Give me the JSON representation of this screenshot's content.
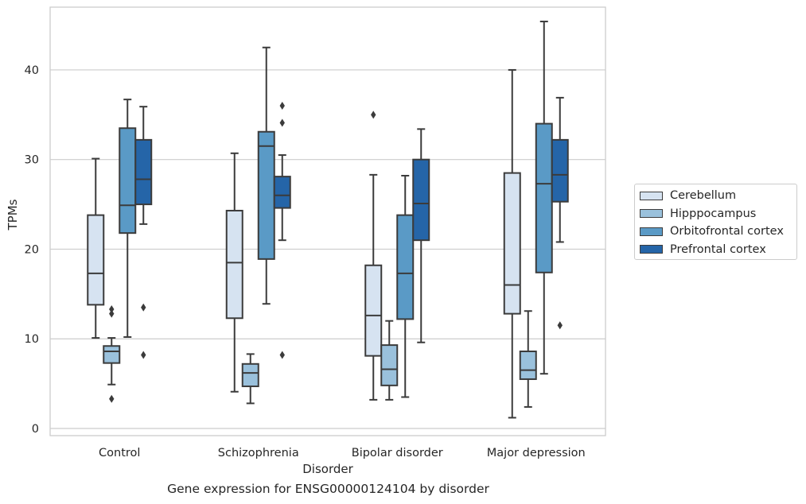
{
  "caption": "Gene expression for ENSG00000124104 by disorder",
  "chart_data": {
    "type": "box",
    "xlabel": "Disorder",
    "ylabel": "TPMs",
    "ylim": [
      -0.8,
      47
    ],
    "yticks": [
      0,
      10,
      20,
      30,
      40
    ],
    "grid": "horizontal",
    "legend_position": "right",
    "categories": [
      "Control",
      "Schizophrenia",
      "Bipolar disorder",
      "Major depression"
    ],
    "series": [
      {
        "name": "Cerebellum",
        "color": "#d6e3f1",
        "boxes": [
          {
            "whislo": 10.1,
            "q1": 13.8,
            "med": 17.3,
            "q3": 23.8,
            "whishi": 30.1,
            "fliers": []
          },
          {
            "whislo": 4.1,
            "q1": 12.3,
            "med": 18.5,
            "q3": 24.3,
            "whishi": 30.7,
            "fliers": []
          },
          {
            "whislo": 3.2,
            "q1": 8.1,
            "med": 12.6,
            "q3": 18.2,
            "whishi": 28.3,
            "fliers": [
              35.0
            ]
          },
          {
            "whislo": 1.2,
            "q1": 12.8,
            "med": 16.0,
            "q3": 28.5,
            "whishi": 40.0,
            "fliers": []
          }
        ]
      },
      {
        "name": "Hipppocampus",
        "color": "#9ac1dc",
        "boxes": [
          {
            "whislo": 4.9,
            "q1": 7.3,
            "med": 8.6,
            "q3": 9.2,
            "whishi": 10.1,
            "fliers": [
              13.3,
              12.8,
              3.3
            ]
          },
          {
            "whislo": 2.8,
            "q1": 4.7,
            "med": 6.2,
            "q3": 7.2,
            "whishi": 8.3,
            "fliers": []
          },
          {
            "whislo": 3.2,
            "q1": 4.8,
            "med": 6.6,
            "q3": 9.3,
            "whishi": 12.0,
            "fliers": []
          },
          {
            "whislo": 2.4,
            "q1": 5.5,
            "med": 6.5,
            "q3": 8.6,
            "whishi": 13.1,
            "fliers": []
          }
        ]
      },
      {
        "name": "Orbitofrontal cortex",
        "color": "#5a9ac6",
        "boxes": [
          {
            "whislo": 10.2,
            "q1": 21.8,
            "med": 24.9,
            "q3": 33.5,
            "whishi": 36.7,
            "fliers": []
          },
          {
            "whislo": 13.9,
            "q1": 18.9,
            "med": 31.5,
            "q3": 33.1,
            "whishi": 42.5,
            "fliers": []
          },
          {
            "whislo": 3.5,
            "q1": 12.2,
            "med": 17.3,
            "q3": 23.8,
            "whishi": 28.2,
            "fliers": []
          },
          {
            "whislo": 6.1,
            "q1": 17.4,
            "med": 27.3,
            "q3": 34.0,
            "whishi": 45.4,
            "fliers": []
          }
        ]
      },
      {
        "name": "Prefrontal cortex",
        "color": "#2565a8",
        "boxes": [
          {
            "whislo": 22.8,
            "q1": 25.0,
            "med": 27.8,
            "q3": 32.2,
            "whishi": 35.9,
            "fliers": [
              13.5,
              8.2
            ]
          },
          {
            "whislo": 21.0,
            "q1": 24.6,
            "med": 26.0,
            "q3": 28.1,
            "whishi": 30.5,
            "fliers": [
              36.0,
              34.1,
              8.2
            ]
          },
          {
            "whislo": 9.6,
            "q1": 21.0,
            "med": 25.1,
            "q3": 30.0,
            "whishi": 33.4,
            "fliers": []
          },
          {
            "whislo": 20.8,
            "q1": 25.3,
            "med": 28.3,
            "q3": 32.2,
            "whishi": 36.9,
            "fliers": [
              11.5
            ]
          }
        ]
      }
    ]
  }
}
